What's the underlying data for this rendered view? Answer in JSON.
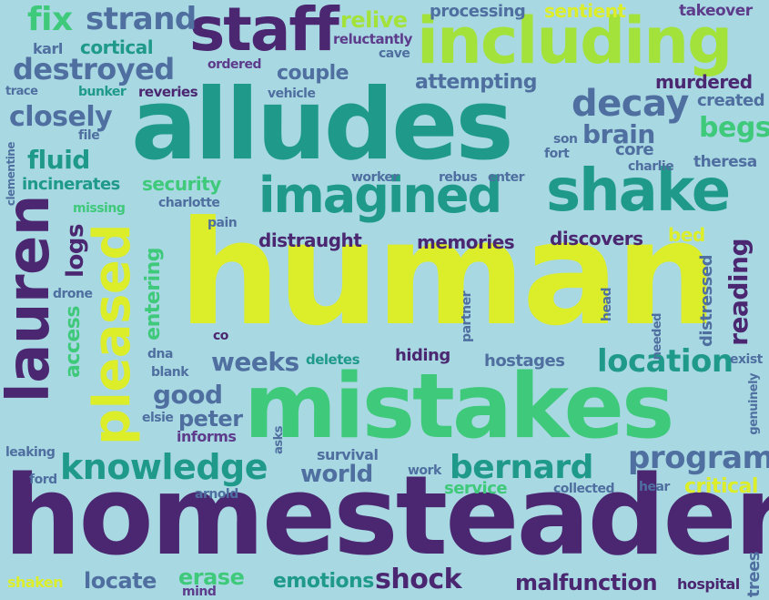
{
  "background": "#a8d8e2",
  "palette": {
    "yellow": "#dcee2a",
    "lime": "#a3e23a",
    "green": "#3fc97a",
    "teal": "#1f9a8a",
    "blue": "#4f6fa0",
    "purple": "#4a2770",
    "violet": "#5e3c8c"
  },
  "words": {
    "human": "human",
    "homesteader": "homesteader",
    "mistakes": "mistakes",
    "alludes": "alludes",
    "including": "including",
    "imagined": "imagined",
    "shake": "shake",
    "staff": "staff",
    "lauren": "lauren",
    "pleased": "pleased",
    "knowledge": "knowledge",
    "program": "program",
    "bernard": "bernard",
    "location": "location",
    "decay": "decay",
    "destroyed": "destroyed",
    "strand": "strand",
    "fix": "fix",
    "relive": "relive",
    "processing": "processing",
    "sentient": "sentient",
    "takeover": "takeover",
    "karl": "karl",
    "cortical": "cortical",
    "reluctantly": "reluctantly",
    "cave": "cave",
    "ordered": "ordered",
    "couple": "couple",
    "attempting": "attempting",
    "murdered": "murdered",
    "trace": "trace",
    "bunker": "bunker",
    "reveries": "reveries",
    "vehicle": "vehicle",
    "created": "created",
    "closely": "closely",
    "file": "file",
    "brain": "brain",
    "begs": "begs",
    "clementine": "clementine",
    "son": "son",
    "fort": "fort",
    "core": "core",
    "charlie": "charlie",
    "theresa": "theresa",
    "fluid": "fluid",
    "worker": "worker",
    "rebus": "rebus",
    "enter": "enter",
    "incinerates": "incinerates",
    "security": "security",
    "charlotte": "charlotte",
    "missing": "missing",
    "pain": "pain",
    "distraught": "distraught",
    "memories": "memories",
    "discovers": "discovers",
    "bed": "bed",
    "logs": "logs",
    "entering": "entering",
    "drone": "drone",
    "access": "access",
    "partner": "partner",
    "head": "head",
    "distressed": "distressed",
    "reading": "reading",
    "needed": "needed",
    "co": "co",
    "hiding": "hiding",
    "hostages": "hostages",
    "dna": "dna",
    "weeks": "weeks",
    "deletes": "deletes",
    "exist": "exist",
    "blank": "blank",
    "good": "good",
    "genuinely": "genuinely",
    "elsie": "elsie",
    "peter": "peter",
    "informs": "informs",
    "asks": "asks",
    "leaking": "leaking",
    "survival": "survival",
    "ford": "ford",
    "work": "work",
    "world": "world",
    "service": "service",
    "collected": "collected",
    "hear": "hear",
    "critical": "critical",
    "arnold": "arnold",
    "shaken": "shaken",
    "locate": "locate",
    "erase": "erase",
    "emotions": "emotions",
    "mind": "mind",
    "shock": "shock",
    "malfunction": "malfunction",
    "hospital": "hospital",
    "trees": "trees"
  }
}
